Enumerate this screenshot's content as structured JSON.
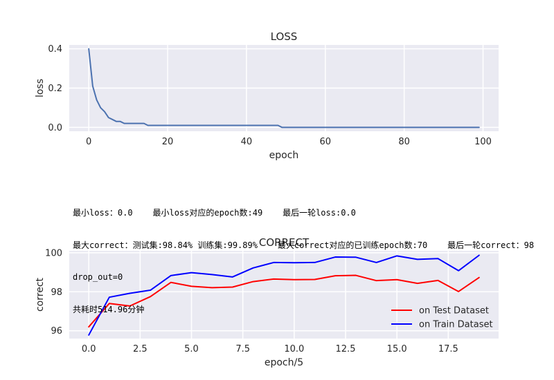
{
  "chart_data": [
    {
      "type": "line",
      "title": "LOSS",
      "xlabel": "epoch",
      "ylabel": "loss",
      "xlim": [
        -4.95,
        103.95
      ],
      "ylim": [
        -0.02,
        0.42
      ],
      "xticks": [
        0,
        20,
        40,
        60,
        80,
        100
      ],
      "xtick_labels": [
        "0",
        "20",
        "40",
        "60",
        "80",
        "100"
      ],
      "yticks": [
        0.0,
        0.2,
        0.4
      ],
      "ytick_labels": [
        "0.0",
        "0.2",
        "0.4"
      ],
      "grid": true,
      "series": [
        {
          "color": "#4c72b0",
          "x": [
            0,
            1,
            2,
            3,
            4,
            5,
            6,
            7,
            8,
            9,
            10,
            11,
            12,
            13,
            14,
            15,
            16,
            17,
            18,
            19,
            20,
            21,
            22,
            23,
            24,
            25,
            26,
            27,
            28,
            29,
            30,
            31,
            32,
            33,
            34,
            35,
            36,
            37,
            38,
            39,
            40,
            41,
            42,
            43,
            44,
            45,
            46,
            47,
            48,
            49,
            50,
            51,
            52,
            53,
            54,
            55,
            56,
            57,
            58,
            59,
            60,
            61,
            62,
            63,
            64,
            65,
            66,
            67,
            68,
            69,
            70,
            71,
            72,
            73,
            74,
            75,
            76,
            77,
            78,
            79,
            80,
            81,
            82,
            83,
            84,
            85,
            86,
            87,
            88,
            89,
            90,
            91,
            92,
            93,
            94,
            95,
            96,
            97,
            98,
            99
          ],
          "y": [
            0.4,
            0.21,
            0.14,
            0.1,
            0.08,
            0.05,
            0.04,
            0.03,
            0.03,
            0.02,
            0.02,
            0.02,
            0.02,
            0.02,
            0.02,
            0.01,
            0.01,
            0.01,
            0.01,
            0.01,
            0.01,
            0.01,
            0.01,
            0.01,
            0.01,
            0.01,
            0.01,
            0.01,
            0.01,
            0.01,
            0.01,
            0.01,
            0.01,
            0.01,
            0.01,
            0.01,
            0.01,
            0.01,
            0.01,
            0.01,
            0.01,
            0.01,
            0.01,
            0.01,
            0.01,
            0.01,
            0.01,
            0.01,
            0.01,
            0.0,
            0.0,
            0.0,
            0.0,
            0.0,
            0.0,
            0.0,
            0.0,
            0.0,
            0.0,
            0.0,
            0.0,
            0.0,
            0.0,
            0.0,
            0.0,
            0.0,
            0.0,
            0.0,
            0.0,
            0.0,
            0.0,
            0.0,
            0.0,
            0.0,
            0.0,
            0.0,
            0.0,
            0.0,
            0.0,
            0.0,
            0.0,
            0.0,
            0.0,
            0.0,
            0.0,
            0.0,
            0.0,
            0.0,
            0.0,
            0.0,
            0.0,
            0.0,
            0.0,
            0.0,
            0.0,
            0.0,
            0.0,
            0.0,
            0.0,
            0.0
          ]
        }
      ]
    },
    {
      "type": "line",
      "title": "CORRECT",
      "xlabel": "epoch/5",
      "ylabel": "correct",
      "xlim": [
        -0.95,
        19.95
      ],
      "ylim": [
        95.6,
        100.1
      ],
      "xticks": [
        0,
        2.5,
        5,
        7.5,
        10,
        12.5,
        15,
        17.5
      ],
      "xtick_labels": [
        "0.0",
        "2.5",
        "5.0",
        "7.5",
        "10.0",
        "12.5",
        "15.0",
        "17.5"
      ],
      "yticks": [
        96,
        98,
        100
      ],
      "ytick_labels": [
        "96",
        "98",
        "100"
      ],
      "grid": true,
      "legend": "lower-right",
      "series": [
        {
          "name": "on Test Dataset",
          "color": "#ff0000",
          "x": [
            0,
            1,
            2,
            3,
            4,
            5,
            6,
            7,
            8,
            9,
            10,
            11,
            12,
            13,
            14,
            15,
            16,
            17,
            18,
            19
          ],
          "y": [
            96.2,
            97.4,
            97.27,
            97.75,
            98.48,
            98.28,
            98.21,
            98.24,
            98.52,
            98.65,
            98.62,
            98.63,
            98.82,
            98.84,
            98.57,
            98.62,
            98.43,
            98.58,
            98.01,
            98.73
          ]
        },
        {
          "name": "on Train Dataset",
          "color": "#0000ff",
          "x": [
            0,
            1,
            2,
            3,
            4,
            5,
            6,
            7,
            8,
            9,
            10,
            11,
            12,
            13,
            14,
            15,
            16,
            17,
            18,
            19
          ],
          "y": [
            95.78,
            97.72,
            97.92,
            98.08,
            98.83,
            98.98,
            98.88,
            98.76,
            99.22,
            99.5,
            99.49,
            99.5,
            99.78,
            99.77,
            99.5,
            99.84,
            99.66,
            99.7,
            99.08,
            99.87
          ]
        }
      ]
    }
  ],
  "info": {
    "line1": "最小loss：0.0    最小loss对应的epoch数:49    最后一轮loss:0.0",
    "line2": "最大correct：测试集:98.84% 训练集:99.89%    最大correct对应的已训练epoch数:70    最后一轮correct：98",
    "line3": "drop_out=0",
    "line4": "共耗时514.96分钟"
  }
}
